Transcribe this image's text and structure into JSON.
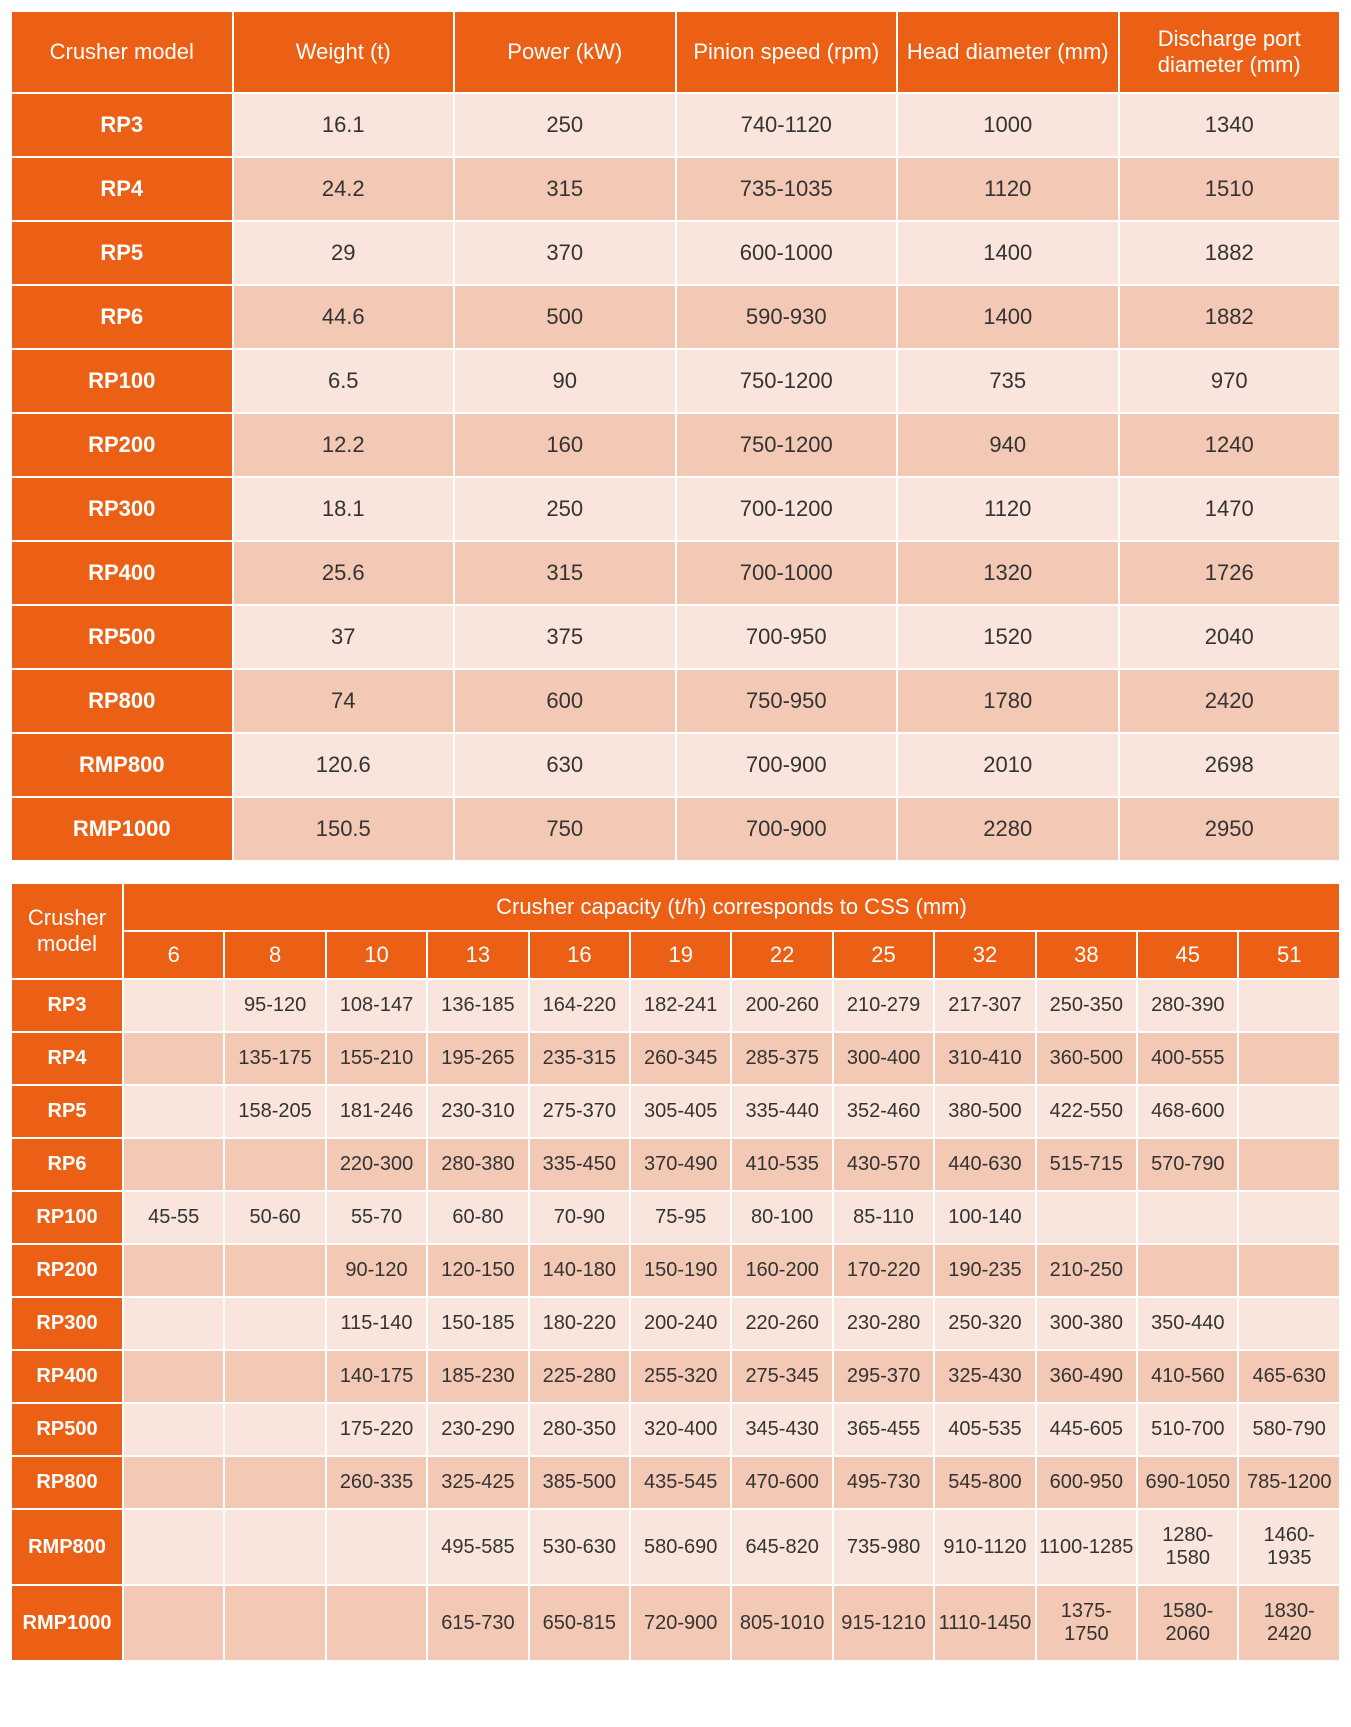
{
  "colors": {
    "header_bg": "#eb6015",
    "header_fg": "#ffffff",
    "row_odd_bg": "#f9e5dc",
    "row_even_bg": "#f3c8b5",
    "text": "#333333"
  },
  "table1": {
    "columns": [
      "Crusher model",
      "Weight (t)",
      "Power (kW)",
      "Pinion speed (rpm)",
      "Head diameter (mm)",
      "Discharge port diameter (mm)"
    ],
    "rows": [
      [
        "RP3",
        "16.1",
        "250",
        "740-1120",
        "1000",
        "1340"
      ],
      [
        "RP4",
        "24.2",
        "315",
        "735-1035",
        "1120",
        "1510"
      ],
      [
        "RP5",
        "29",
        "370",
        "600-1000",
        "1400",
        "1882"
      ],
      [
        "RP6",
        "44.6",
        "500",
        "590-930",
        "1400",
        "1882"
      ],
      [
        "RP100",
        "6.5",
        "90",
        "750-1200",
        "735",
        "970"
      ],
      [
        "RP200",
        "12.2",
        "160",
        "750-1200",
        "940",
        "1240"
      ],
      [
        "RP300",
        "18.1",
        "250",
        "700-1200",
        "1120",
        "1470"
      ],
      [
        "RP400",
        "25.6",
        "315",
        "700-1000",
        "1320",
        "1726"
      ],
      [
        "RP500",
        "37",
        "375",
        "700-950",
        "1520",
        "2040"
      ],
      [
        "RP800",
        "74",
        "600",
        "750-950",
        "1780",
        "2420"
      ],
      [
        "RMP800",
        "120.6",
        "630",
        "700-900",
        "2010",
        "2698"
      ],
      [
        "RMP1000",
        "150.5",
        "750",
        "700-900",
        "2280",
        "2950"
      ]
    ]
  },
  "table2": {
    "model_header": "Crusher model",
    "span_header": "Crusher capacity (t/h) corresponds to CSS (mm)",
    "css_values": [
      "6",
      "8",
      "10",
      "13",
      "16",
      "19",
      "22",
      "25",
      "32",
      "38",
      "45",
      "51"
    ],
    "rows": [
      {
        "model": "RP3",
        "cells": [
          "",
          "95-120",
          "108-147",
          "136-185",
          "164-220",
          "182-241",
          "200-260",
          "210-279",
          "217-307",
          "250-350",
          "280-390",
          ""
        ]
      },
      {
        "model": "RP4",
        "cells": [
          "",
          "135-175",
          "155-210",
          "195-265",
          "235-315",
          "260-345",
          "285-375",
          "300-400",
          "310-410",
          "360-500",
          "400-555",
          ""
        ]
      },
      {
        "model": "RP5",
        "cells": [
          "",
          "158-205",
          "181-246",
          "230-310",
          "275-370",
          "305-405",
          "335-440",
          "352-460",
          "380-500",
          "422-550",
          "468-600",
          ""
        ]
      },
      {
        "model": "RP6",
        "cells": [
          "",
          "",
          "220-300",
          "280-380",
          "335-450",
          "370-490",
          "410-535",
          "430-570",
          "440-630",
          "515-715",
          "570-790",
          ""
        ]
      },
      {
        "model": "RP100",
        "cells": [
          "45-55",
          "50-60",
          "55-70",
          "60-80",
          "70-90",
          "75-95",
          "80-100",
          "85-110",
          "100-140",
          "",
          "",
          ""
        ]
      },
      {
        "model": "RP200",
        "cells": [
          "",
          "",
          "90-120",
          "120-150",
          "140-180",
          "150-190",
          "160-200",
          "170-220",
          "190-235",
          "210-250",
          "",
          ""
        ]
      },
      {
        "model": "RP300",
        "cells": [
          "",
          "",
          "115-140",
          "150-185",
          "180-220",
          "200-240",
          "220-260",
          "230-280",
          "250-320",
          "300-380",
          "350-440",
          ""
        ]
      },
      {
        "model": "RP400",
        "cells": [
          "",
          "",
          "140-175",
          "185-230",
          "225-280",
          "255-320",
          "275-345",
          "295-370",
          "325-430",
          "360-490",
          "410-560",
          "465-630"
        ]
      },
      {
        "model": "RP500",
        "cells": [
          "",
          "",
          "175-220",
          "230-290",
          "280-350",
          "320-400",
          "345-430",
          "365-455",
          "405-535",
          "445-605",
          "510-700",
          "580-790"
        ]
      },
      {
        "model": "RP800",
        "cells": [
          "",
          "",
          "260-335",
          "325-425",
          "385-500",
          "435-545",
          "470-600",
          "495-730",
          "545-800",
          "600-950",
          "690-1050",
          "785-1200"
        ]
      },
      {
        "model": "RMP800",
        "cells": [
          "",
          "",
          "",
          "495-585",
          "530-630",
          "580-690",
          "645-820",
          "735-980",
          "910-1120",
          "1100-1285",
          "1280-1580",
          "1460-1935"
        ]
      },
      {
        "model": "RMP1000",
        "cells": [
          "",
          "",
          "",
          "615-730",
          "650-815",
          "720-900",
          "805-1010",
          "915-1210",
          "1110-1450",
          "1375-1750",
          "1580-2060",
          "1830-2420"
        ]
      }
    ]
  }
}
